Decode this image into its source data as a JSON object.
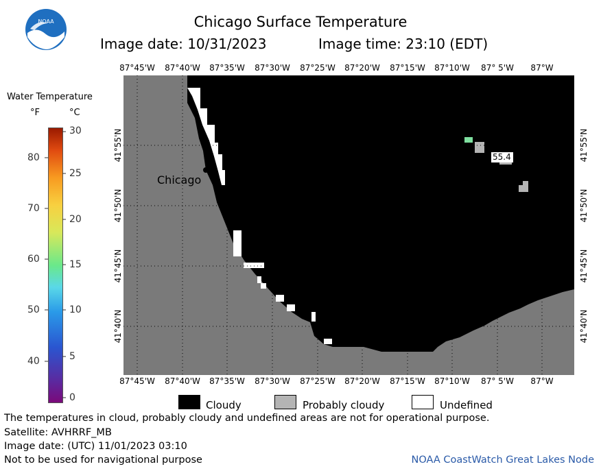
{
  "header": {
    "title": "Chicago Surface Temperature",
    "image_date": "Image date: 10/31/2023",
    "image_time": "Image time: 23:10 (EDT)"
  },
  "logo": {
    "text": "NOAA"
  },
  "legend": {
    "title": "Water Temperature",
    "unit_f": "°F",
    "unit_c": "°C",
    "f_ticks": [
      "80",
      "70",
      "60",
      "50",
      "40"
    ],
    "c_ticks": [
      "30",
      "25",
      "20",
      "15",
      "10",
      "5",
      "0"
    ]
  },
  "map": {
    "lon_labels": [
      "87°45'W",
      "87°40'W",
      "87°35'W",
      "87°30'W",
      "87°25'W",
      "87°20'W",
      "87°15'W",
      "87°10'W",
      "87° 5'W",
      "87°W"
    ],
    "lat_labels": [
      "41°55'N",
      "41°50'N",
      "41°45'N",
      "41°40'N"
    ],
    "city_label": "Chicago",
    "temp_label": "55.4",
    "colors": {
      "land": "#7a7a7a",
      "cloudy": "#000000",
      "probably_cloudy": "#b4b4b4",
      "undefined": "#ffffff",
      "warm_pixel": "#7fe0a0"
    }
  },
  "key": {
    "cloudy": "Cloudy",
    "probably_cloudy": "Probably cloudy",
    "undefined": "Undefined"
  },
  "footer": {
    "line1": "The temperatures in cloud, probably cloudy and undefined areas are not for operational purpose.",
    "line2": "Satellite: AVHRRF_MB",
    "line3": "Image date: (UTC) 11/01/2023  03:10",
    "line4": "Not to be used for navigational purpose",
    "credit": "NOAA CoastWatch Great Lakes Node"
  }
}
